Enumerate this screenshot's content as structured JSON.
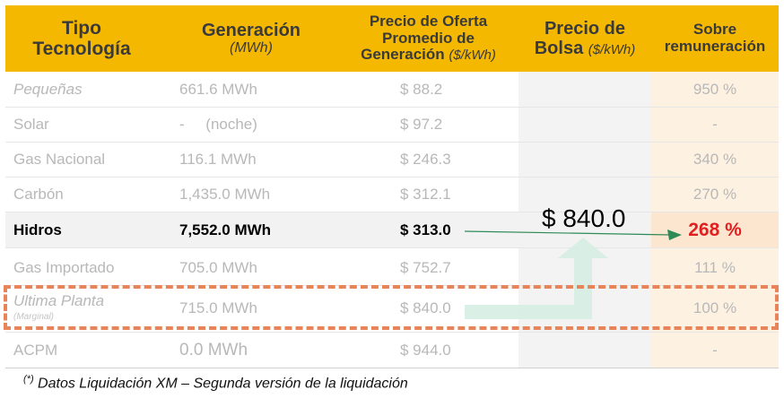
{
  "headers": {
    "tipo": [
      "Tipo",
      "Tecnología"
    ],
    "generacion": "Generación",
    "generacion_unit": "(MWh)",
    "oferta": [
      "Precio de Oferta",
      "Promedio de",
      "Generación"
    ],
    "oferta_unit": "($/kWh)",
    "bolsa": "Precio de",
    "bolsa_line2": "Bolsa",
    "bolsa_unit": "($/kWh)",
    "sobre": [
      "Sobre",
      "remuneración"
    ]
  },
  "rows": [
    {
      "tipo": "Pequeñas",
      "generacion": "661.6 MWh",
      "oferta": "$ 88.2",
      "sobre": "950 %"
    },
    {
      "tipo": "Solar",
      "generacion": "-     (noche)",
      "oferta": "$ 97.2",
      "sobre": "-"
    },
    {
      "tipo": "Gas Nacional",
      "generacion": "116.1 MWh",
      "oferta": "$ 246.3",
      "sobre": "340 %"
    },
    {
      "tipo": "Carbón",
      "generacion": "1,435.0 MWh",
      "oferta": "$ 312.1",
      "sobre": "270 %"
    },
    {
      "tipo": "Hidros",
      "generacion": "7,552.0 MWh",
      "oferta": "$ 313.0",
      "sobre": "268 %"
    },
    {
      "tipo": "Gas Importado",
      "generacion": "705.0 MWh",
      "oferta": "$ 752.7",
      "sobre": "111 %"
    },
    {
      "tipo": "Ultima Planta",
      "tipo_sub": "(Marginal)",
      "generacion": "715.0 MWh",
      "oferta": "$ 840.0",
      "sobre": "100 %"
    },
    {
      "tipo": "ACPM",
      "generacion": "0.0 MWh",
      "oferta": "$ 944.0",
      "sobre": "-"
    }
  ],
  "precio_bolsa": "$ 840.0",
  "footnote_mark": "(*)",
  "footnote": " Datos Liquidación XM – Segunda versión de la liquidación",
  "colors": {
    "header": "#F5B800",
    "highlight_red": "#E02020",
    "dash": "#E8845A",
    "arrow_green": "#2E8B57"
  }
}
